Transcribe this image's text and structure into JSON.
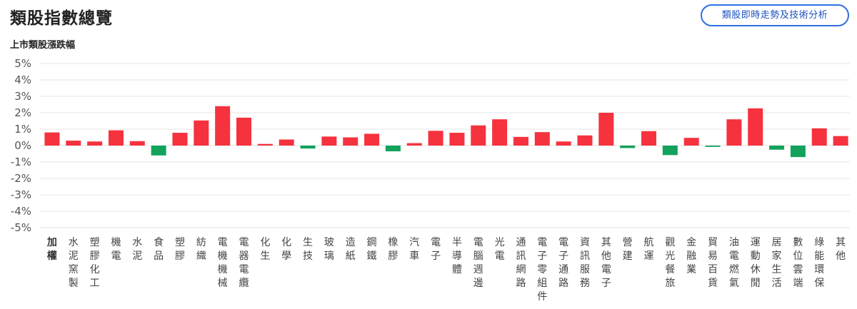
{
  "header": {
    "title": "類股指數總覽",
    "action_button": "類股即時走勢及技術分析"
  },
  "colors": {
    "up": "#f5323e",
    "down": "#12a25c",
    "grid": "#e6e6e6",
    "button": "#2f6fe0"
  },
  "chart_data": {
    "type": "bar",
    "title": "上市類股漲跌幅",
    "xlabel": "",
    "ylabel": "",
    "ylim": [
      -5,
      5
    ],
    "y_ticks": [
      "5%",
      "4%",
      "3%",
      "2%",
      "1%",
      "0%",
      "-1%",
      "-2%",
      "-3%",
      "-4%",
      "-5%"
    ],
    "grid": true,
    "categories": [
      "加權",
      "水泥窯製",
      "塑膠化工",
      "機電",
      "水泥",
      "食品",
      "塑膠",
      "紡織",
      "電機機械",
      "電器電纜",
      "化生",
      "化學",
      "生技",
      "玻璃",
      "造紙",
      "鋼鐵",
      "橡膠",
      "汽車",
      "電子",
      "半導體",
      "電腦週邊",
      "光電",
      "通訊網路",
      "電子零組件",
      "電子通路",
      "資訊服務",
      "其他電子",
      "營建",
      "航運",
      "觀光餐旅",
      "金融業",
      "貿易百貨",
      "油電燃氣",
      "運動休閒",
      "居家生活",
      "數位雲端",
      "綠能環保",
      "其他"
    ],
    "values": [
      0.8,
      0.3,
      0.25,
      0.93,
      0.27,
      -0.6,
      0.78,
      1.53,
      2.4,
      1.7,
      0.1,
      0.37,
      -0.18,
      0.55,
      0.5,
      0.72,
      -0.35,
      0.15,
      0.9,
      0.78,
      1.23,
      1.6,
      0.53,
      0.82,
      0.25,
      0.62,
      2.0,
      -0.15,
      0.88,
      -0.58,
      0.47,
      -0.08,
      1.6,
      2.27,
      -0.25,
      -0.7,
      1.05,
      0.58
    ],
    "highlight": "加權"
  }
}
